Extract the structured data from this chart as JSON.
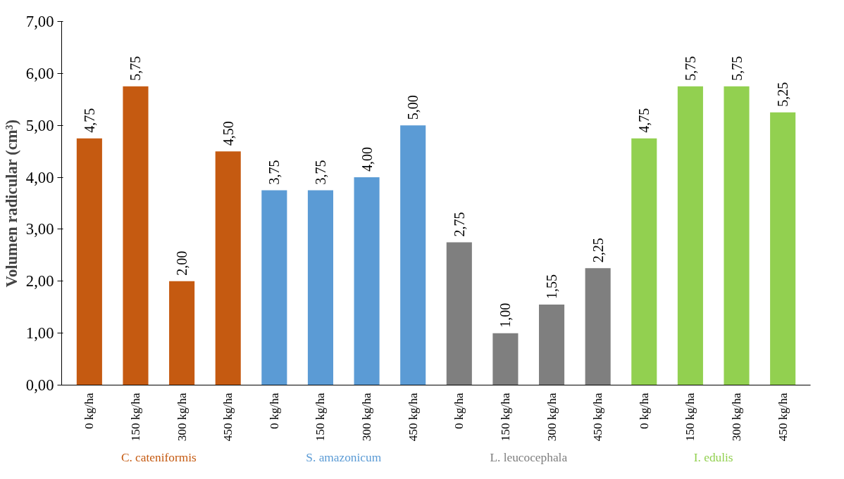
{
  "chart_data": {
    "type": "bar",
    "ylabel": "Volumen radicular (cm³)",
    "categories": [
      "0 kg/ha",
      "150 kg/ha",
      "300 kg/ha",
      "450 kg/ha",
      "0 kg/ha",
      "150 kg/ha",
      "300 kg/ha",
      "450 kg/ha",
      "0 kg/ha",
      "150 kg/ha",
      "300 kg/ha",
      "450 kg/ha",
      "0 kg/ha",
      "150 kg/ha",
      "300 kg/ha",
      "450 kg/ha"
    ],
    "series": [
      {
        "name": "C. cateniformis",
        "color": "#c55a11",
        "values": [
          4.75,
          5.75,
          2.0,
          4.5,
          null,
          null,
          null,
          null,
          null,
          null,
          null,
          null,
          null,
          null,
          null,
          null
        ],
        "value_labels": [
          "4,75",
          "5,75",
          "2,00",
          "4,50",
          null,
          null,
          null,
          null,
          null,
          null,
          null,
          null,
          null,
          null,
          null,
          null
        ]
      },
      {
        "name": "S. amazonicum",
        "color": "#5b9bd5",
        "values": [
          null,
          null,
          null,
          null,
          3.75,
          3.75,
          4.0,
          5.0,
          null,
          null,
          null,
          null,
          null,
          null,
          null,
          null
        ],
        "value_labels": [
          null,
          null,
          null,
          null,
          "3,75",
          "3,75",
          "4,00",
          "5,00",
          null,
          null,
          null,
          null,
          null,
          null,
          null,
          null
        ]
      },
      {
        "name": "L. leucocephala",
        "color": "#7f7f7f",
        "values": [
          null,
          null,
          null,
          null,
          null,
          null,
          null,
          null,
          2.75,
          1.0,
          1.55,
          2.25,
          null,
          null,
          null,
          null
        ],
        "value_labels": [
          null,
          null,
          null,
          null,
          null,
          null,
          null,
          null,
          "2,75",
          "1,00",
          "1,55",
          "2,25",
          null,
          null,
          null,
          null
        ]
      },
      {
        "name": "I. edulis",
        "color": "#92d050",
        "values": [
          null,
          null,
          null,
          null,
          null,
          null,
          null,
          null,
          null,
          null,
          null,
          null,
          4.75,
          5.75,
          5.75,
          5.25
        ],
        "value_labels": [
          null,
          null,
          null,
          null,
          null,
          null,
          null,
          null,
          null,
          null,
          null,
          null,
          "4,75",
          "5,75",
          "5,75",
          "5,25"
        ]
      }
    ],
    "ylim": [
      0,
      7
    ],
    "yticks": [
      {
        "value": 0,
        "label": "0,00"
      },
      {
        "value": 1,
        "label": "1,00"
      },
      {
        "value": 2,
        "label": "2,00"
      },
      {
        "value": 3,
        "label": "3,00"
      },
      {
        "value": 4,
        "label": "4,00"
      },
      {
        "value": 5,
        "label": "5,00"
      },
      {
        "value": 6,
        "label": "6,00"
      },
      {
        "value": 7,
        "label": "7,00"
      }
    ],
    "grid": false,
    "legend": false
  }
}
